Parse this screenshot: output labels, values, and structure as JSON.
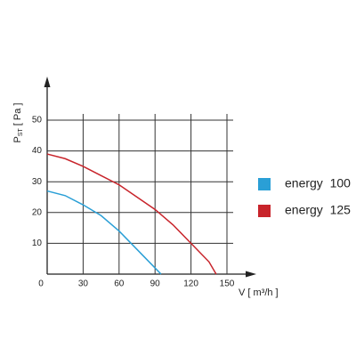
{
  "chart_data": {
    "type": "line",
    "y_label": {
      "main": "P",
      "sub": "ST",
      "unit": "[ Pa ]"
    },
    "x_label": "V [ m³/h ]",
    "xlim": [
      0,
      150
    ],
    "ylim": [
      0,
      50
    ],
    "xticks": [
      0,
      30,
      60,
      90,
      120,
      150
    ],
    "yticks": [
      10,
      20,
      30,
      40,
      50
    ],
    "grid": true,
    "legend": "right",
    "series": [
      {
        "name": "energy  100",
        "color": "#2a9fd6",
        "x": [
          0,
          15,
          30,
          45,
          60,
          75,
          90,
          95
        ],
        "values": [
          27,
          25.5,
          22.5,
          19,
          14,
          8,
          2,
          0
        ]
      },
      {
        "name": "energy  125",
        "color": "#c8242b",
        "x": [
          0,
          15,
          30,
          45,
          60,
          75,
          90,
          105,
          120,
          135,
          141
        ],
        "values": [
          39,
          37.5,
          35,
          32,
          29,
          25,
          21,
          16,
          10,
          4,
          0
        ]
      }
    ]
  }
}
